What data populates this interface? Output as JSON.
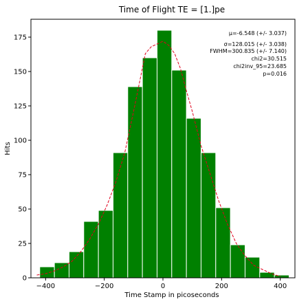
{
  "chart_data": {
    "type": "histogram",
    "title": "Time of Flight TE = [1.]pe",
    "xlabel": "Time Stamp in picoseconds",
    "ylabel": "Hits",
    "xlim": [
      -450,
      450
    ],
    "ylim": [
      0,
      188
    ],
    "xticks": [
      -400,
      -200,
      0,
      200,
      400
    ],
    "yticks": [
      0,
      25,
      50,
      75,
      100,
      125,
      150,
      175
    ],
    "bin_edges": [
      -420,
      -370,
      -320,
      -270,
      -220,
      -170,
      -120,
      -70,
      -20,
      30,
      80,
      130,
      180,
      230,
      280,
      330,
      380,
      430
    ],
    "counts": [
      8,
      11,
      19,
      41,
      49,
      91,
      139,
      160,
      180,
      151,
      116,
      91,
      51,
      24,
      15,
      4,
      2
    ],
    "bar_color": "#008000",
    "bar_edge_color": "#ffffff",
    "fit": {
      "style": "dashed",
      "color": "#e0001b",
      "mu": -6.548,
      "sigma": 128.015,
      "x": [
        -430,
        -400,
        -370,
        -340,
        -310,
        -280,
        -250,
        -220,
        -190,
        -160,
        -130,
        -100,
        -80,
        -60,
        -40,
        -20,
        0,
        20,
        40,
        60,
        80,
        100,
        130,
        160,
        190,
        220,
        250,
        280,
        310,
        340,
        370,
        400
      ],
      "y": [
        2,
        3,
        5,
        8,
        12,
        19,
        28,
        39,
        53,
        70,
        91,
        121,
        142,
        163,
        168,
        170,
        172,
        169,
        163,
        152,
        136,
        121,
        96,
        76,
        56,
        39,
        25,
        16,
        9,
        6,
        3,
        1
      ]
    },
    "stats": [
      "μ=-6.548 (+/- 3.037)",
      "σ=128.015 (+/- 3.038)",
      "FWHM=300.835 (+/- 7.140)",
      "chi2=30.515",
      "chi2inv_95=23.685",
      "p=0.016"
    ]
  }
}
